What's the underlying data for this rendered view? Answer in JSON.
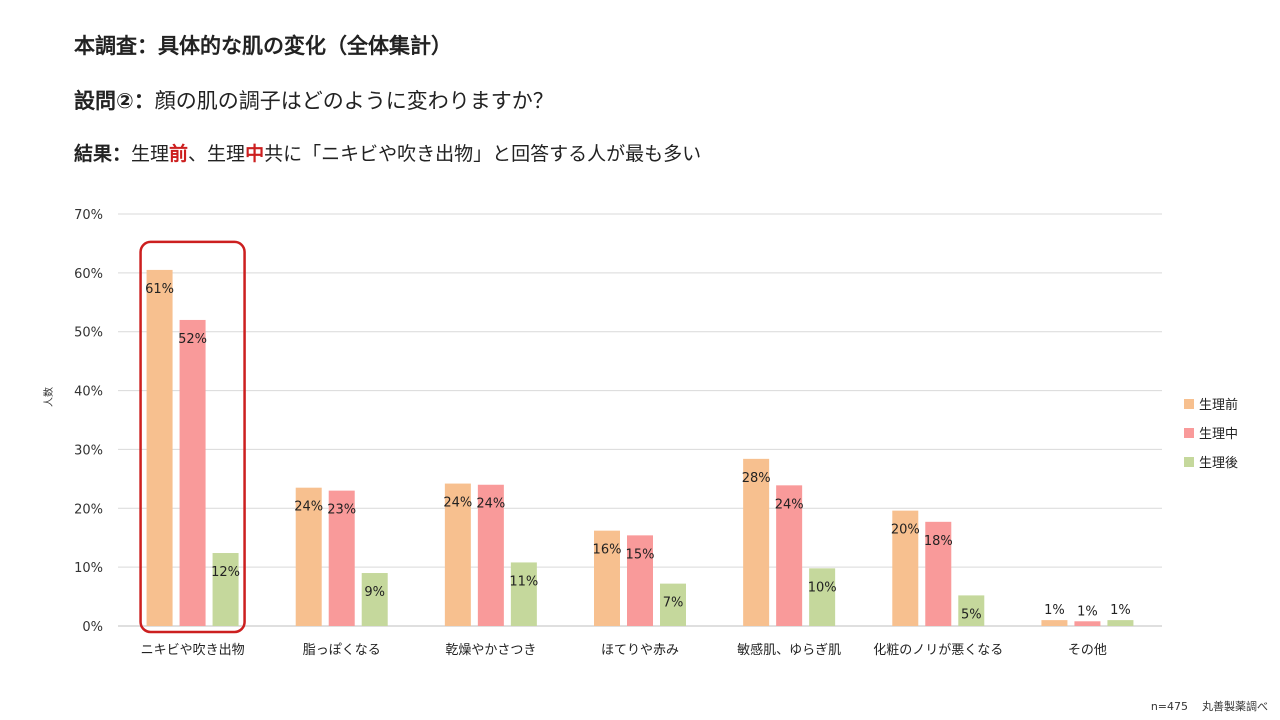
{
  "header": {
    "title": "本調査：具体的な肌の変化（全体集計）",
    "question_label": "設問②：",
    "question_text": "顔の肌の調子はどのように変わりますか？",
    "result_label": "結果：",
    "result_parts": [
      "生理",
      "前",
      "、生理",
      "中",
      "共に「ニキビや吹き出物」と回答する人が最も多い"
    ]
  },
  "footer": {
    "n": "n=475",
    "source": "丸善製薬調べ"
  },
  "chart_data": {
    "type": "bar",
    "ylabel": "人数",
    "ylim": [
      0,
      70
    ],
    "yticks": [
      0,
      10,
      20,
      30,
      40,
      50,
      60,
      70
    ],
    "ytick_labels": [
      "0%",
      "10%",
      "20%",
      "30%",
      "40%",
      "50%",
      "60%",
      "70%"
    ],
    "categories": [
      "ニキビや吹き出物",
      "脂っぽくなる",
      "乾燥やかさつき",
      "ほてりや赤み",
      "敏感肌、ゆらぎ肌",
      "化粧のノリが悪くなる",
      "その他"
    ],
    "series": [
      {
        "name": "生理前",
        "color": "#f7c08f",
        "values": [
          60.5,
          23.5,
          24.2,
          16.2,
          28.4,
          19.6,
          1.0
        ],
        "labels": [
          "61%",
          "24%",
          "24%",
          "16%",
          "28%",
          "20%",
          "1%"
        ]
      },
      {
        "name": "生理中",
        "color": "#f99a9a",
        "values": [
          52.0,
          23.0,
          24.0,
          15.4,
          23.9,
          17.7,
          0.8
        ],
        "labels": [
          "52%",
          "23%",
          "24%",
          "15%",
          "24%",
          "18%",
          "1%"
        ]
      },
      {
        "name": "生理後",
        "color": "#c5d89c",
        "values": [
          12.4,
          9.0,
          10.8,
          7.2,
          9.8,
          5.2,
          1.0
        ],
        "labels": [
          "12%",
          "9%",
          "11%",
          "7%",
          "10%",
          "5%",
          "1%"
        ]
      }
    ],
    "legend_position": "right",
    "highlight": {
      "category_index": 0,
      "color": "#cc1f1f"
    },
    "grid": true
  }
}
